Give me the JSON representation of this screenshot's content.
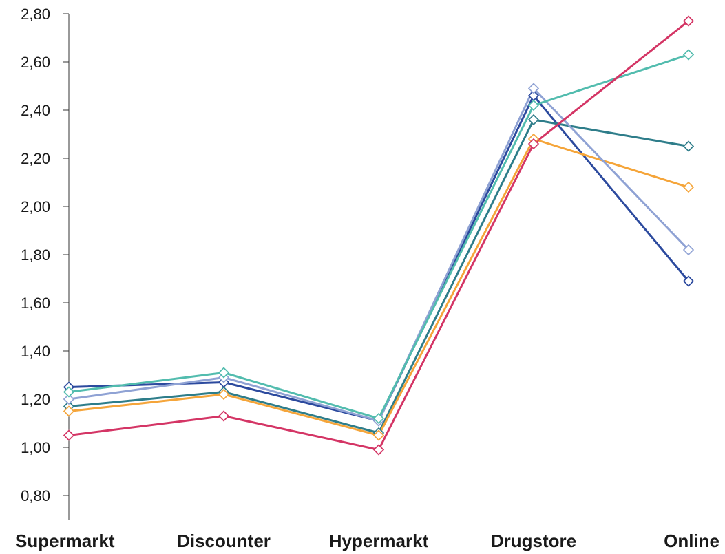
{
  "chart_data": {
    "type": "line",
    "categories": [
      "Supermarkt",
      "Discounter",
      "Hypermarkt",
      "Drugstore",
      "Online"
    ],
    "ylim": [
      0.7,
      2.8
    ],
    "yticks": [
      0.8,
      1.0,
      1.2,
      1.4,
      1.6,
      1.8,
      2.0,
      2.2,
      2.4,
      2.6,
      2.8
    ],
    "ytick_labels": [
      "0,80",
      "1,00",
      "1,20",
      "1,40",
      "1,60",
      "1,80",
      "2,00",
      "2,20",
      "2,40",
      "2,60",
      "2,80"
    ],
    "grid": false,
    "legend": "none",
    "marker": "diamond-open",
    "series": [
      {
        "color": "#2c4a9e",
        "values": [
          1.25,
          1.27,
          1.11,
          2.46,
          1.69
        ]
      },
      {
        "color": "#2e7d8a",
        "values": [
          1.17,
          1.23,
          1.06,
          2.36,
          2.25
        ]
      },
      {
        "color": "#f5a53a",
        "values": [
          1.15,
          1.22,
          1.05,
          2.28,
          2.08
        ]
      },
      {
        "color": "#8fa2d4",
        "values": [
          1.2,
          1.29,
          1.11,
          2.49,
          1.82
        ]
      },
      {
        "color": "#52bcae",
        "values": [
          1.23,
          1.31,
          1.12,
          2.42,
          2.63
        ]
      },
      {
        "color": "#d43565",
        "values": [
          1.05,
          1.13,
          0.99,
          2.26,
          2.77
        ]
      }
    ]
  }
}
